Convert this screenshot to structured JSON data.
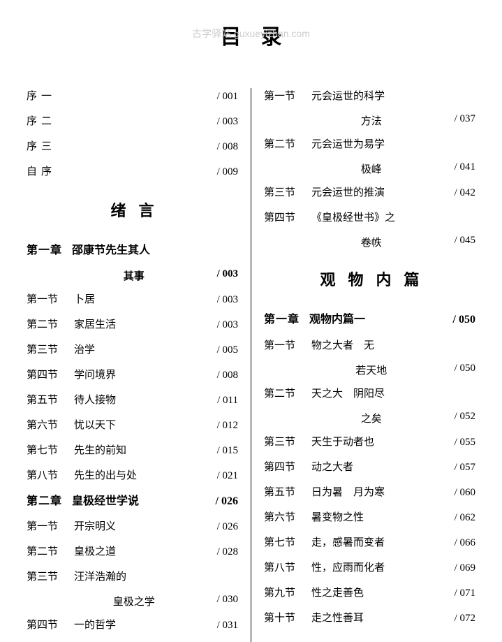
{
  "watermark": "古学驿站 guxueyizhan.com",
  "pageTitle": "目录",
  "left": {
    "frontMatter": [
      {
        "label": "序一",
        "page": "/ 001"
      },
      {
        "label": "序二",
        "page": "/ 003"
      },
      {
        "label": "序三",
        "page": "/ 008"
      },
      {
        "label": "自序",
        "page": "/ 009"
      }
    ],
    "heading1": "绪言",
    "ch1": {
      "label": "第一章",
      "title": "邵康节先生其人",
      "cont": "其事",
      "page": "/ 003"
    },
    "ch1sections": [
      {
        "label": "第一节",
        "title": "卜居",
        "page": "/ 003"
      },
      {
        "label": "第二节",
        "title": "家居生活",
        "page": "/ 003"
      },
      {
        "label": "第三节",
        "title": "治学",
        "page": "/ 005"
      },
      {
        "label": "第四节",
        "title": "学问境界",
        "page": "/ 008"
      },
      {
        "label": "第五节",
        "title": "待人接物",
        "page": "/ 011"
      },
      {
        "label": "第六节",
        "title": "忧以天下",
        "page": "/ 012"
      },
      {
        "label": "第七节",
        "title": "先生的前知",
        "page": "/ 015"
      },
      {
        "label": "第八节",
        "title": "先生的出与处",
        "page": "/ 021"
      }
    ],
    "ch2": {
      "label": "第二章",
      "title": "皇极经世学说",
      "page": "/ 026"
    },
    "ch2sections": [
      {
        "label": "第一节",
        "title": "开宗明义",
        "page": "/ 026"
      },
      {
        "label": "第二节",
        "title": "皇极之道",
        "page": "/ 028"
      },
      {
        "label": "第三节",
        "title": "汪洋浩瀚的",
        "cont": "皇极之学",
        "page": "/ 030"
      },
      {
        "label": "第四节",
        "title": "一的哲学",
        "page": "/ 031"
      }
    ]
  },
  "right": {
    "topSections": [
      {
        "label": "第一节",
        "title": "元会运世的科学",
        "cont": "方法",
        "page": "/ 037"
      },
      {
        "label": "第二节",
        "title": "元会运世为易学",
        "cont": "极峰",
        "page": "/ 041"
      },
      {
        "label": "第三节",
        "title": "元会运世的推演",
        "page": "/ 042"
      },
      {
        "label": "第四节",
        "title": "《皇极经世书》之",
        "cont": "卷帙",
        "page": "/ 045"
      }
    ],
    "heading2": "观物内篇",
    "ch1": {
      "label": "第一章",
      "title": "观物内篇一",
      "page": "/ 050"
    },
    "ch1sections": [
      {
        "label": "第一节",
        "title": "物之大者　无",
        "cont": "若天地",
        "page": "/ 050"
      },
      {
        "label": "第二节",
        "title": "天之大　阴阳尽",
        "cont": "之矣",
        "page": "/ 052"
      },
      {
        "label": "第三节",
        "title": "天生于动者也",
        "page": "/ 055"
      },
      {
        "label": "第四节",
        "title": "动之大者",
        "page": "/ 057"
      },
      {
        "label": "第五节",
        "title": "日为暑　月为寒",
        "page": "/ 060"
      },
      {
        "label": "第六节",
        "title": "暑变物之性",
        "page": "/ 062"
      },
      {
        "label": "第七节",
        "title": "走，感暑而变者",
        "page": "/ 066"
      },
      {
        "label": "第八节",
        "title": "性，应雨而化者",
        "page": "/ 069"
      },
      {
        "label": "第九节",
        "title": "性之走善色",
        "page": "/ 071"
      },
      {
        "label": "第十节",
        "title": "走之性善耳",
        "page": "/ 072"
      }
    ]
  }
}
